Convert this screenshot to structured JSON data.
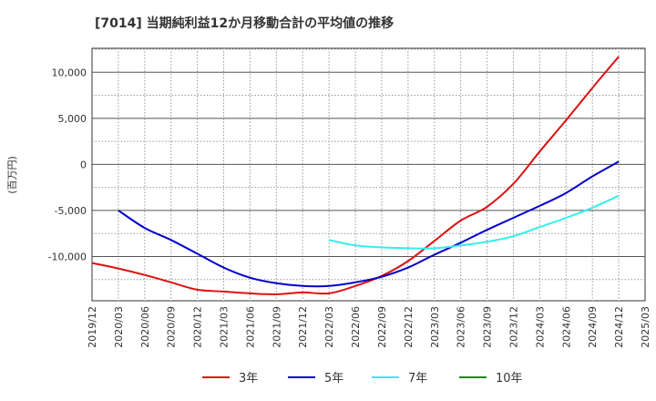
{
  "chart_data": {
    "type": "line",
    "title": "[7014]  当期純利益12か月移動合計の平均値の推移",
    "ylabel": "(百万円)",
    "xlabel": "",
    "x_ticks": [
      "2019/12",
      "2020/03",
      "2020/06",
      "2020/09",
      "2020/12",
      "2021/03",
      "2021/06",
      "2021/09",
      "2021/12",
      "2022/03",
      "2022/06",
      "2022/09",
      "2022/12",
      "2023/03",
      "2023/06",
      "2023/09",
      "2023/12",
      "2024/03",
      "2024/06",
      "2024/09",
      "2024/12",
      "2025/03"
    ],
    "y_ticks": [
      {
        "value": 10000,
        "label": "10,000"
      },
      {
        "value": 5000,
        "label": "5,000"
      },
      {
        "value": 0,
        "label": "0"
      },
      {
        "value": -5000,
        "label": "-5,000"
      },
      {
        "value": -10000,
        "label": "-10,000"
      }
    ],
    "ylim": [
      -14800,
      12600
    ],
    "grid": true,
    "legend_position": "bottom",
    "series": [
      {
        "name": "3年",
        "color": "#dd1111",
        "points": [
          [
            "2019/12",
            -10700
          ],
          [
            "2020/03",
            -11300
          ],
          [
            "2020/06",
            -12000
          ],
          [
            "2020/09",
            -12800
          ],
          [
            "2020/12",
            -13600
          ],
          [
            "2021/03",
            -13800
          ],
          [
            "2021/06",
            -14000
          ],
          [
            "2021/09",
            -14100
          ],
          [
            "2021/12",
            -13900
          ],
          [
            "2022/03",
            -14000
          ],
          [
            "2022/06",
            -13200
          ],
          [
            "2022/09",
            -12100
          ],
          [
            "2022/12",
            -10500
          ],
          [
            "2023/03",
            -8300
          ],
          [
            "2023/06",
            -6100
          ],
          [
            "2023/09",
            -4600
          ],
          [
            "2023/12",
            -2100
          ],
          [
            "2024/03",
            1400
          ],
          [
            "2024/06",
            4800
          ],
          [
            "2024/09",
            8300
          ],
          [
            "2024/12",
            11700
          ]
        ]
      },
      {
        "name": "5年",
        "color": "#0000cc",
        "points": [
          [
            "2020/03",
            -5000
          ],
          [
            "2020/06",
            -6900
          ],
          [
            "2020/09",
            -8200
          ],
          [
            "2020/12",
            -9700
          ],
          [
            "2021/03",
            -11200
          ],
          [
            "2021/06",
            -12300
          ],
          [
            "2021/09",
            -12900
          ],
          [
            "2021/12",
            -13200
          ],
          [
            "2022/03",
            -13200
          ],
          [
            "2022/06",
            -12800
          ],
          [
            "2022/09",
            -12200
          ],
          [
            "2022/12",
            -11200
          ],
          [
            "2023/03",
            -9800
          ],
          [
            "2023/06",
            -8500
          ],
          [
            "2023/09",
            -7100
          ],
          [
            "2023/12",
            -5800
          ],
          [
            "2024/03",
            -4500
          ],
          [
            "2024/06",
            -3100
          ],
          [
            "2024/09",
            -1300
          ],
          [
            "2024/12",
            300
          ]
        ]
      },
      {
        "name": "7年",
        "color": "#33eeee",
        "points": [
          [
            "2022/03",
            -8200
          ],
          [
            "2022/06",
            -8800
          ],
          [
            "2022/09",
            -9000
          ],
          [
            "2022/12",
            -9100
          ],
          [
            "2023/03",
            -9100
          ],
          [
            "2023/06",
            -8800
          ],
          [
            "2023/09",
            -8400
          ],
          [
            "2023/12",
            -7800
          ],
          [
            "2024/03",
            -6800
          ],
          [
            "2024/06",
            -5800
          ],
          [
            "2024/09",
            -4700
          ],
          [
            "2024/12",
            -3400
          ]
        ]
      },
      {
        "name": "10年",
        "color": "#228822",
        "points": []
      }
    ]
  }
}
